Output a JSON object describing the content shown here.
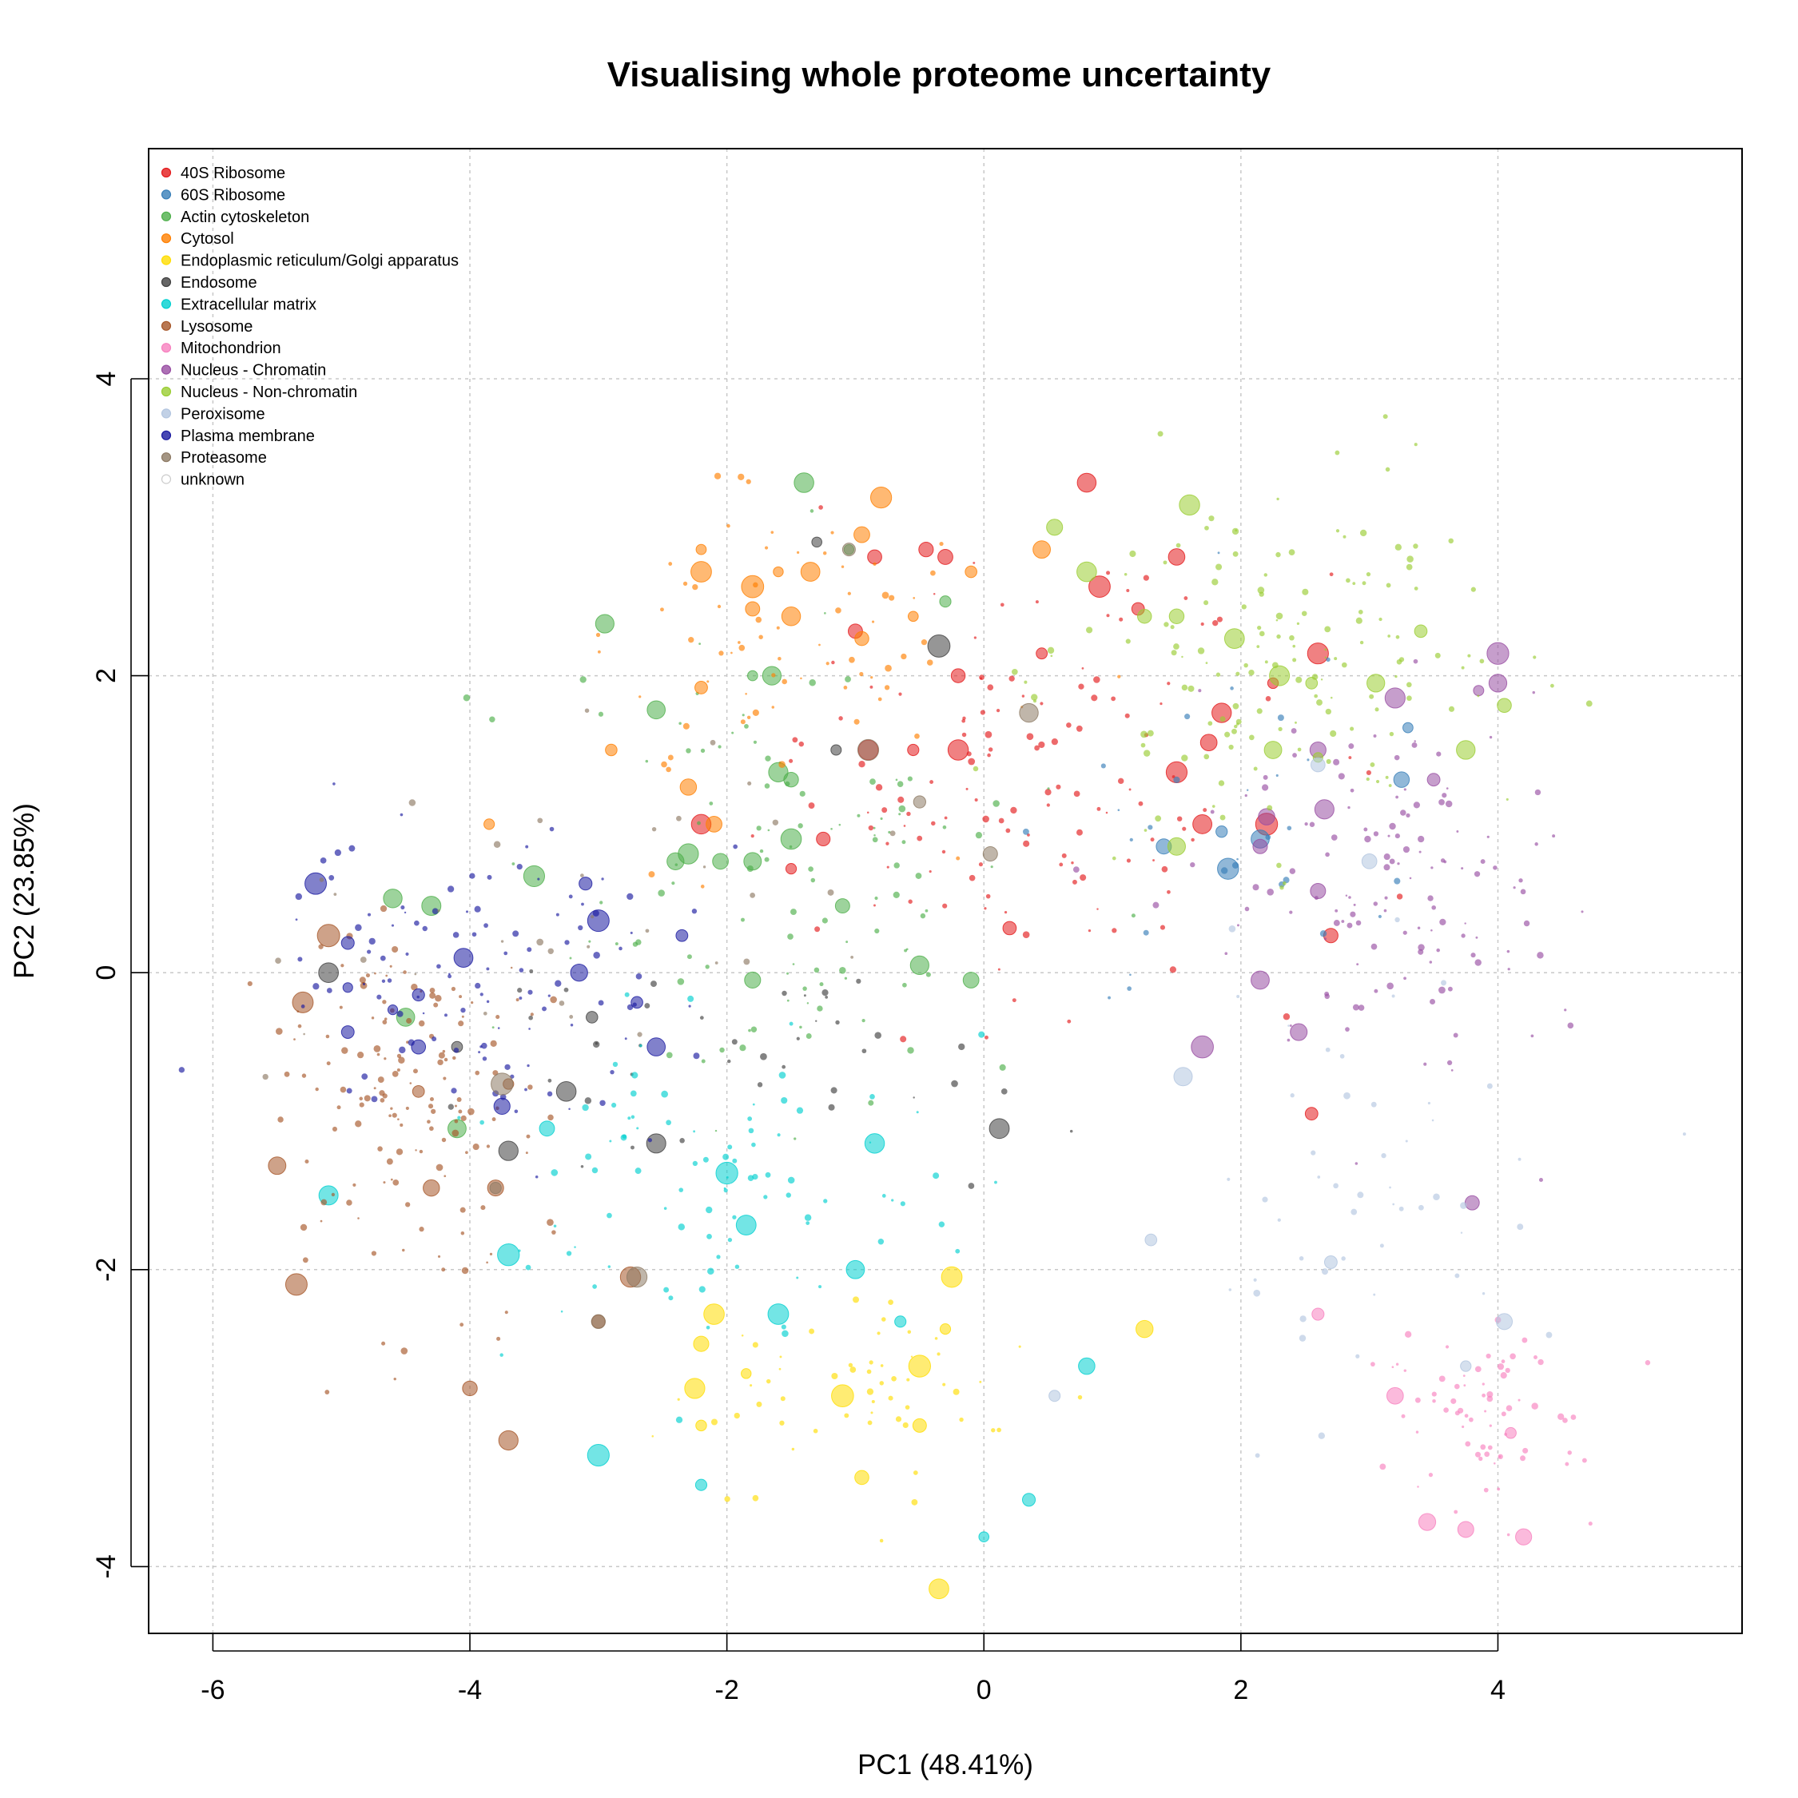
{
  "chart_data": {
    "type": "scatter",
    "title": "Visualising whole proteome uncertainty",
    "xlabel": "PC1 (48.41%)",
    "ylabel": "PC2 (23.85%)",
    "xlim": [
      -6.5,
      5.9
    ],
    "ylim": [
      -4.45,
      5.55
    ],
    "xticks": [
      -6,
      -4,
      -2,
      0,
      2,
      4
    ],
    "yticks": [
      -4,
      -2,
      0,
      2,
      4
    ],
    "grid": true,
    "legend_position": "top-left",
    "series": [
      {
        "name": "40S Ribosome",
        "color": "#e41a1c",
        "centroid": [
          0.3,
          1.3
        ],
        "spread": [
          1.7,
          1.2
        ],
        "count": 130,
        "points": [
          [
            -2.2,
            1.0
          ],
          [
            -1.25,
            0.9
          ],
          [
            -0.2,
            2.0
          ],
          [
            -0.45,
            2.85
          ],
          [
            -0.85,
            2.8
          ],
          [
            -0.3,
            2.8
          ],
          [
            -0.2,
            1.5
          ],
          [
            0.45,
            2.15
          ],
          [
            0.9,
            2.6
          ],
          [
            1.2,
            2.45
          ],
          [
            1.5,
            1.35
          ],
          [
            1.7,
            1.0
          ],
          [
            1.75,
            1.55
          ],
          [
            1.85,
            1.75
          ],
          [
            1.5,
            2.8
          ],
          [
            2.2,
            1.0
          ],
          [
            2.6,
            2.15
          ],
          [
            2.7,
            0.25
          ],
          [
            2.55,
            -0.95
          ],
          [
            2.25,
            1.95
          ],
          [
            -1.5,
            0.7
          ],
          [
            -0.55,
            1.5
          ],
          [
            -0.9,
            1.5
          ],
          [
            0.2,
            0.3
          ],
          [
            0.8,
            3.3
          ],
          [
            -1.0,
            2.3
          ]
        ]
      },
      {
        "name": "60S Ribosome",
        "color": "#377eb8",
        "centroid": [
          2.0,
          1.0
        ],
        "spread": [
          1.4,
          0.8
        ],
        "count": 28,
        "points": [
          [
            1.85,
            0.95
          ],
          [
            1.4,
            0.85
          ],
          [
            3.25,
            1.3
          ],
          [
            3.3,
            1.65
          ],
          [
            2.15,
            0.9
          ],
          [
            1.9,
            0.7
          ]
        ]
      },
      {
        "name": "Actin cytoskeleton",
        "color": "#4daf4a",
        "centroid": [
          -1.5,
          0.6
        ],
        "spread": [
          1.6,
          1.3
        ],
        "count": 110,
        "points": [
          [
            -1.4,
            3.3
          ],
          [
            -1.8,
            2.0
          ],
          [
            -1.65,
            2.0
          ],
          [
            -2.55,
            1.77
          ],
          [
            -1.5,
            0.9
          ],
          [
            -1.5,
            1.3
          ],
          [
            -2.05,
            0.75
          ],
          [
            -2.4,
            0.75
          ],
          [
            -2.3,
            0.8
          ],
          [
            -3.5,
            0.65
          ],
          [
            -4.6,
            0.5
          ],
          [
            -4.3,
            0.45
          ],
          [
            -1.1,
            0.45
          ],
          [
            -0.1,
            -0.05
          ],
          [
            -0.5,
            0.05
          ],
          [
            -1.05,
            2.85
          ],
          [
            -0.3,
            2.5
          ],
          [
            -2.95,
            2.35
          ],
          [
            -1.6,
            1.35
          ],
          [
            -1.8,
            0.75
          ],
          [
            -4.1,
            -1.05
          ],
          [
            -4.5,
            -0.3
          ],
          [
            -1.8,
            -0.05
          ]
        ]
      },
      {
        "name": "Cytosol",
        "color": "#ff7f00",
        "centroid": [
          -1.7,
          2.2
        ],
        "spread": [
          1.4,
          0.9
        ],
        "count": 70,
        "points": [
          [
            -2.2,
            2.7
          ],
          [
            -2.2,
            2.85
          ],
          [
            -1.8,
            2.6
          ],
          [
            -1.35,
            2.7
          ],
          [
            -1.6,
            2.7
          ],
          [
            -1.8,
            2.45
          ],
          [
            -0.55,
            2.4
          ],
          [
            -0.95,
            2.95
          ],
          [
            -1.5,
            2.4
          ],
          [
            0.45,
            2.85
          ],
          [
            -0.1,
            2.7
          ],
          [
            -2.3,
            1.25
          ],
          [
            -0.95,
            2.25
          ],
          [
            -3.85,
            1.0
          ],
          [
            -2.9,
            1.5
          ],
          [
            -2.1,
            1.0
          ],
          [
            -0.8,
            3.2
          ],
          [
            -2.2,
            1.92
          ]
        ]
      },
      {
        "name": "Endoplasmic reticulum/Golgi apparatus",
        "color": "#ffdd00",
        "centroid": [
          -0.9,
          -2.8
        ],
        "spread": [
          1.1,
          0.6
        ],
        "count": 55,
        "points": [
          [
            -2.2,
            -2.5
          ],
          [
            -2.25,
            -2.8
          ],
          [
            -2.2,
            -3.05
          ],
          [
            -2.1,
            -2.3
          ],
          [
            -0.95,
            -3.4
          ],
          [
            -0.5,
            -3.05
          ],
          [
            -0.5,
            -2.65
          ],
          [
            -0.3,
            -2.4
          ],
          [
            -0.25,
            -2.05
          ],
          [
            1.25,
            -2.4
          ],
          [
            -0.35,
            -4.15
          ],
          [
            -1.85,
            -2.7
          ],
          [
            -1.1,
            -2.85
          ]
        ]
      },
      {
        "name": "Endosome",
        "color": "#404040",
        "centroid": [
          -2.0,
          -0.6
        ],
        "spread": [
          1.6,
          0.7
        ],
        "count": 40,
        "points": [
          [
            -3.7,
            -1.2
          ],
          [
            -3.25,
            -0.8
          ],
          [
            -2.55,
            -1.15
          ],
          [
            0.12,
            -1.05
          ],
          [
            -1.3,
            2.9
          ],
          [
            -0.35,
            2.2
          ],
          [
            -4.1,
            -0.5
          ],
          [
            -3.05,
            -0.3
          ],
          [
            -5.1,
            0.0
          ],
          [
            -1.15,
            1.5
          ]
        ]
      },
      {
        "name": "Extracellular matrix",
        "color": "#00d0d0",
        "centroid": [
          -2.2,
          -1.3
        ],
        "spread": [
          1.5,
          1.0
        ],
        "count": 90,
        "points": [
          [
            -1.85,
            -1.7
          ],
          [
            -3.0,
            -3.25
          ],
          [
            -1.6,
            -2.3
          ],
          [
            0.0,
            -3.8
          ],
          [
            0.35,
            -3.55
          ],
          [
            0.8,
            -2.65
          ],
          [
            -0.65,
            -2.35
          ],
          [
            -1.0,
            -2.0
          ],
          [
            -2.2,
            -3.45
          ],
          [
            -3.4,
            -1.05
          ],
          [
            -3.7,
            -1.9
          ],
          [
            -0.85,
            -1.15
          ],
          [
            -5.1,
            -1.5
          ],
          [
            -2.0,
            -1.35
          ]
        ]
      },
      {
        "name": "Lysosome",
        "color": "#a65628",
        "centroid": [
          -4.5,
          -0.8
        ],
        "spread": [
          0.9,
          1.0
        ],
        "count": 150,
        "points": [
          [
            -2.75,
            -2.05
          ],
          [
            -3.7,
            -0.75
          ],
          [
            -3.8,
            -1.45
          ],
          [
            -3.0,
            -2.35
          ],
          [
            -3.7,
            -3.15
          ],
          [
            -4.3,
            -1.45
          ],
          [
            -5.1,
            0.25
          ],
          [
            -5.3,
            -0.2
          ],
          [
            -5.35,
            -2.1
          ],
          [
            -5.5,
            -1.3
          ],
          [
            -4.4,
            -0.8
          ],
          [
            -4.0,
            -2.8
          ]
        ]
      },
      {
        "name": "Mitochondrion",
        "color": "#f781bf",
        "centroid": [
          3.9,
          -3.0
        ],
        "spread": [
          0.6,
          0.5
        ],
        "count": 70,
        "points": [
          [
            2.6,
            -2.3
          ],
          [
            3.45,
            -3.7
          ],
          [
            3.2,
            -2.85
          ],
          [
            3.75,
            -3.75
          ],
          [
            4.1,
            -3.1
          ],
          [
            4.2,
            -3.8
          ]
        ]
      },
      {
        "name": "Nucleus - Chromatin",
        "color": "#984ea3",
        "centroid": [
          3.2,
          0.6
        ],
        "spread": [
          1.1,
          1.0
        ],
        "count": 130,
        "points": [
          [
            2.65,
            1.1
          ],
          [
            2.6,
            0.55
          ],
          [
            3.2,
            1.85
          ],
          [
            4.0,
            1.95
          ],
          [
            4.0,
            2.15
          ],
          [
            3.5,
            1.3
          ],
          [
            2.2,
            1.05
          ],
          [
            2.15,
            -0.05
          ],
          [
            2.6,
            1.5
          ],
          [
            1.7,
            -0.5
          ],
          [
            2.45,
            -0.4
          ],
          [
            3.85,
            1.9
          ],
          [
            2.15,
            0.85
          ],
          [
            3.8,
            -1.55
          ]
        ]
      },
      {
        "name": "Nucleus - Non-chromatin",
        "color": "#9acd32",
        "centroid": [
          2.4,
          2.0
        ],
        "spread": [
          1.4,
          1.0
        ],
        "count": 150,
        "points": [
          [
            0.55,
            3.0
          ],
          [
            1.5,
            2.4
          ],
          [
            1.25,
            2.4
          ],
          [
            2.3,
            2.0
          ],
          [
            1.95,
            2.25
          ],
          [
            3.05,
            1.95
          ],
          [
            3.4,
            2.3
          ],
          [
            2.55,
            1.95
          ],
          [
            2.25,
            1.5
          ],
          [
            1.6,
            3.15
          ],
          [
            0.8,
            2.7
          ],
          [
            4.05,
            1.8
          ],
          [
            3.75,
            1.5
          ],
          [
            2.6,
            1.45
          ],
          [
            1.5,
            0.85
          ]
        ]
      },
      {
        "name": "Peroxisome",
        "color": "#b3c6e0",
        "centroid": [
          3.0,
          -1.5
        ],
        "spread": [
          1.2,
          1.2
        ],
        "count": 50,
        "points": [
          [
            1.55,
            -0.7
          ],
          [
            0.55,
            -2.85
          ],
          [
            1.3,
            -1.8
          ],
          [
            2.7,
            -1.95
          ],
          [
            3.75,
            -2.65
          ],
          [
            4.05,
            -2.35
          ],
          [
            2.6,
            1.4
          ],
          [
            3.0,
            0.75
          ]
        ]
      },
      {
        "name": "Plasma membrane",
        "color": "#1a1aa0",
        "centroid": [
          -3.9,
          -0.1
        ],
        "spread": [
          1.3,
          0.8
        ],
        "count": 110,
        "points": [
          [
            -4.95,
            -0.1
          ],
          [
            -5.2,
            0.6
          ],
          [
            -4.95,
            0.2
          ],
          [
            -4.4,
            -0.5
          ],
          [
            -4.4,
            -0.15
          ],
          [
            -3.75,
            -0.9
          ],
          [
            -4.05,
            0.1
          ],
          [
            -3.1,
            0.6
          ],
          [
            -2.55,
            -0.5
          ],
          [
            -2.35,
            0.25
          ],
          [
            -3.0,
            0.35
          ],
          [
            -4.6,
            -0.25
          ],
          [
            -4.95,
            -0.4
          ],
          [
            -3.15,
            0.0
          ],
          [
            -2.7,
            -0.2
          ]
        ]
      },
      {
        "name": "Proteasome",
        "color": "#8d7a64",
        "centroid": [
          -3.2,
          0.3
        ],
        "spread": [
          1.8,
          1.2
        ],
        "count": 35,
        "points": [
          [
            -2.7,
            -2.05
          ],
          [
            -3.0,
            -2.35
          ],
          [
            -3.75,
            -0.75
          ],
          [
            -3.8,
            -1.45
          ],
          [
            -0.5,
            1.15
          ],
          [
            0.05,
            0.8
          ],
          [
            -1.05,
            2.85
          ],
          [
            0.35,
            1.75
          ],
          [
            -0.9,
            1.5
          ]
        ]
      },
      {
        "name": "unknown",
        "color": "#f0f0f0",
        "centroid": [
          0,
          0
        ],
        "spread": [
          0,
          0
        ],
        "count": 0,
        "points": []
      }
    ]
  }
}
